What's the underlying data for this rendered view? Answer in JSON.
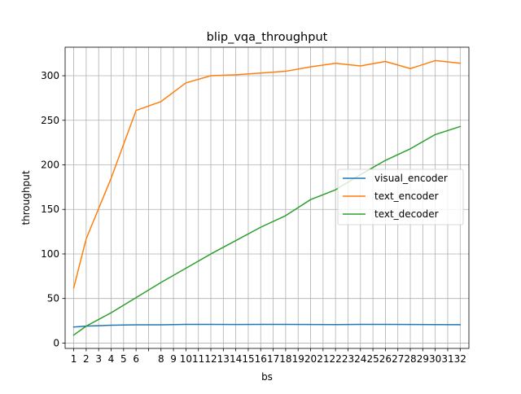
{
  "chart_data": {
    "type": "line",
    "title": "blip_vqa_throughput",
    "xlabel": "bs",
    "ylabel": "throughput",
    "x": [
      1,
      2,
      3,
      4,
      5,
      6,
      7,
      8,
      9,
      10,
      11,
      12,
      13,
      14,
      15,
      16,
      17,
      18,
      19,
      20,
      21,
      22,
      23,
      24,
      25,
      26,
      27,
      28,
      29,
      30,
      31,
      32
    ],
    "x_ticks_shown": [
      1,
      2,
      3,
      4,
      5,
      6,
      8,
      9,
      10,
      11,
      12,
      13,
      14,
      15,
      16,
      17,
      18,
      19,
      20,
      21,
      22,
      23,
      24,
      25,
      26,
      27,
      28,
      29,
      30,
      31,
      32
    ],
    "yticks": [
      0,
      50,
      100,
      150,
      200,
      250,
      300
    ],
    "xlim": [
      0.31,
      32.7
    ],
    "ylim": [
      -6,
      332
    ],
    "grid": true,
    "legend_position": "center-right",
    "series": [
      {
        "name": "visual_encoder",
        "color": "#1f77b4",
        "x": [
          1,
          2,
          4,
          6,
          8,
          10,
          12,
          14,
          16,
          18,
          20,
          22,
          24,
          26,
          28,
          30,
          32
        ],
        "y": [
          18,
          19,
          20,
          20.5,
          20.5,
          21,
          21,
          20.8,
          21,
          21,
          20.8,
          20.7,
          21,
          21,
          20.8,
          20.7,
          20.6
        ]
      },
      {
        "name": "text_encoder",
        "color": "#ff7f0e",
        "x": [
          1,
          2,
          4,
          6,
          8,
          10,
          12,
          14,
          16,
          18,
          20,
          22,
          24,
          26,
          28,
          30,
          32
        ],
        "y": [
          62,
          117,
          185,
          261,
          271,
          292,
          300,
          301,
          303,
          305,
          310,
          314,
          311,
          316,
          308,
          317,
          314
        ]
      },
      {
        "name": "text_decoder",
        "color": "#2ca02c",
        "x": [
          1,
          2,
          4,
          6,
          8,
          10,
          12,
          14,
          16,
          18,
          20,
          22,
          24,
          26,
          28,
          30,
          32
        ],
        "y": [
          9,
          19,
          34,
          51,
          68,
          84,
          100,
          115,
          130,
          143,
          161,
          172,
          189,
          205,
          218,
          234,
          243
        ]
      }
    ]
  }
}
